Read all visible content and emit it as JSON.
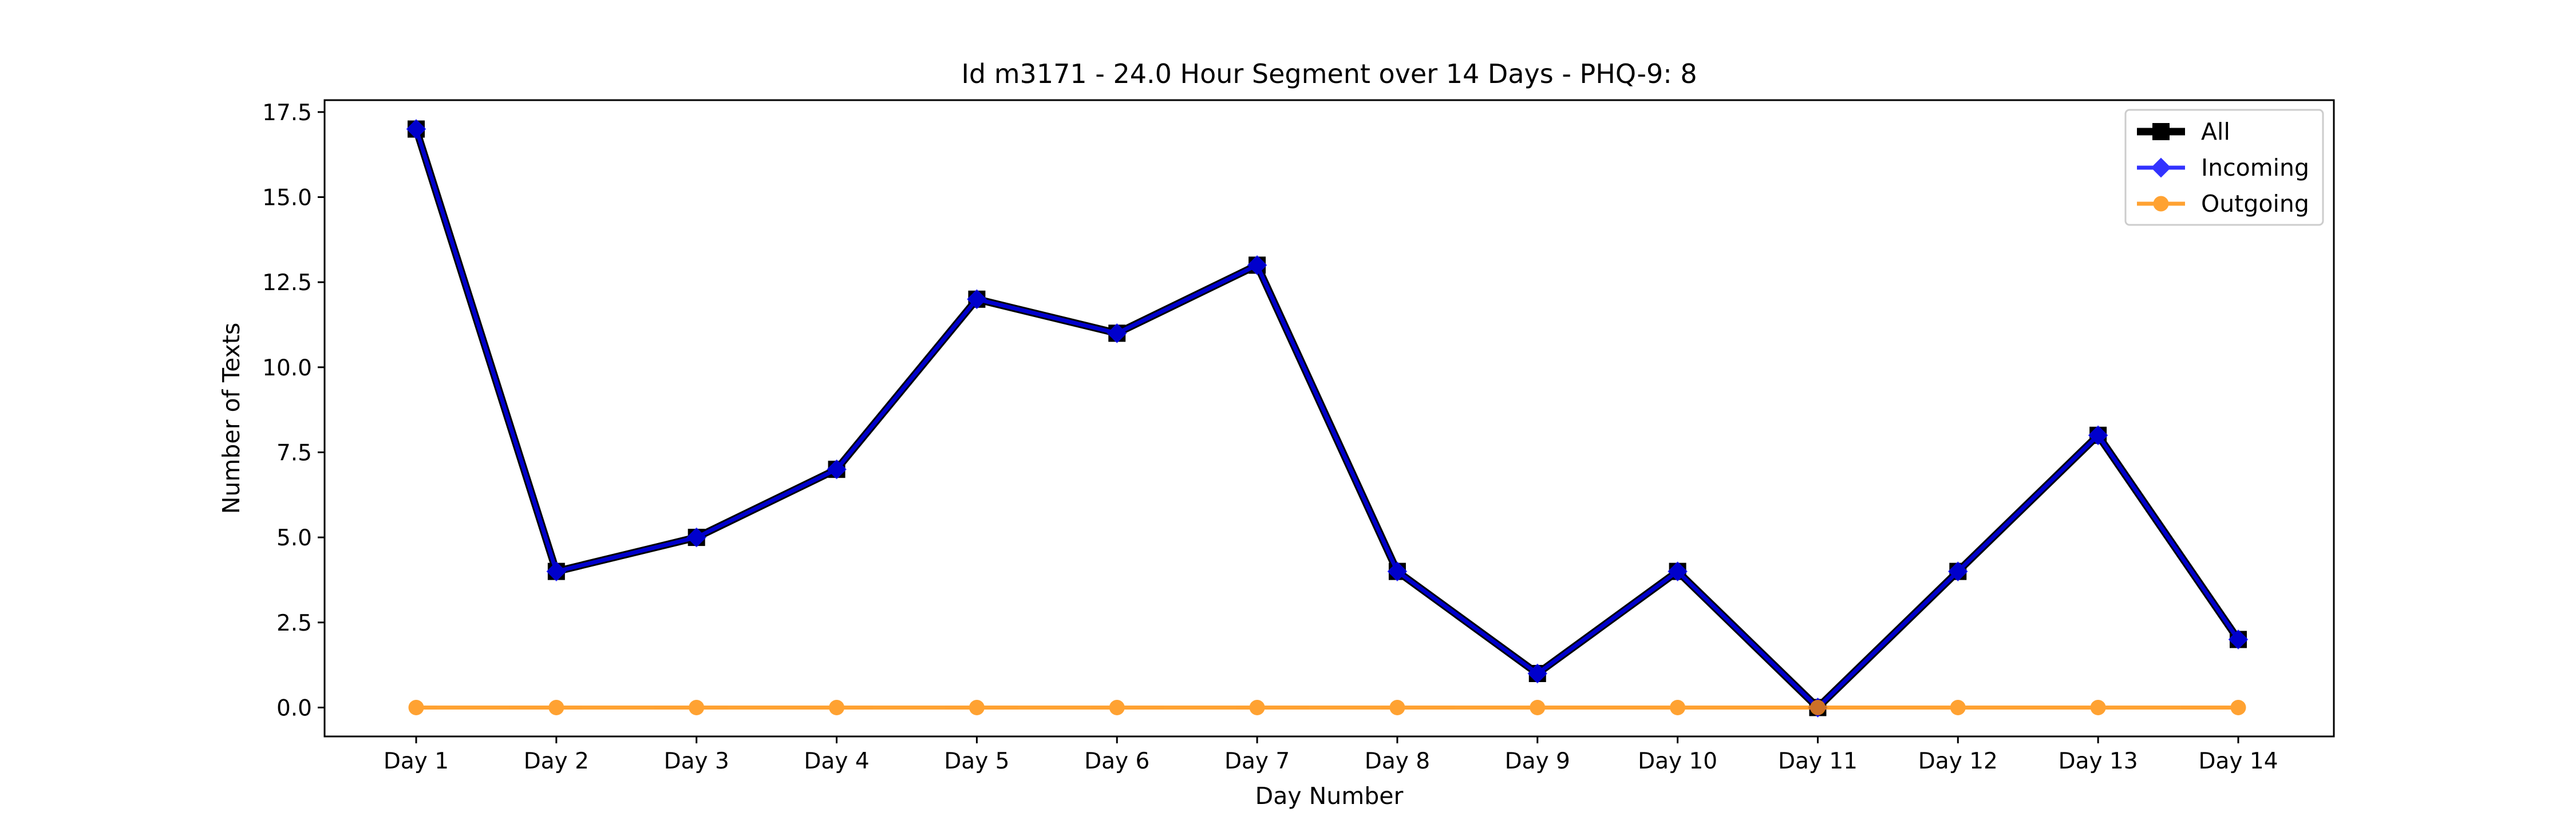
{
  "chart_data": {
    "type": "line",
    "title": "Id m3171 - 24.0 Hour Segment over 14 Days - PHQ-9: 8",
    "xlabel": "Day Number",
    "ylabel": "Number of Texts",
    "categories": [
      "Day 1",
      "Day 2",
      "Day 3",
      "Day 4",
      "Day 5",
      "Day 6",
      "Day 7",
      "Day 8",
      "Day 9",
      "Day 10",
      "Day 11",
      "Day 12",
      "Day 13",
      "Day 14"
    ],
    "ylim": [
      -0.85,
      17.85
    ],
    "yticks": [
      0.0,
      2.5,
      5.0,
      7.5,
      10.0,
      12.5,
      15.0,
      17.5
    ],
    "ytick_labels": [
      "0.0",
      "2.5",
      "5.0",
      "7.5",
      "10.0",
      "12.5",
      "15.0",
      "17.5"
    ],
    "grid": false,
    "legend_position": "top-right",
    "series": [
      {
        "name": "All",
        "color": "#000000",
        "marker": "square",
        "values": [
          17,
          4,
          5,
          7,
          12,
          11,
          13,
          4,
          1,
          4,
          0,
          4,
          8,
          2
        ]
      },
      {
        "name": "Incoming",
        "color": "#0000ff",
        "marker": "diamond",
        "values": [
          17,
          4,
          5,
          7,
          12,
          11,
          13,
          4,
          1,
          4,
          0,
          4,
          8,
          2
        ]
      },
      {
        "name": "Outgoing",
        "color": "#ff8c00",
        "marker": "circle",
        "values": [
          0,
          0,
          0,
          0,
          0,
          0,
          0,
          0,
          0,
          0,
          0,
          0,
          0,
          0
        ]
      }
    ]
  }
}
